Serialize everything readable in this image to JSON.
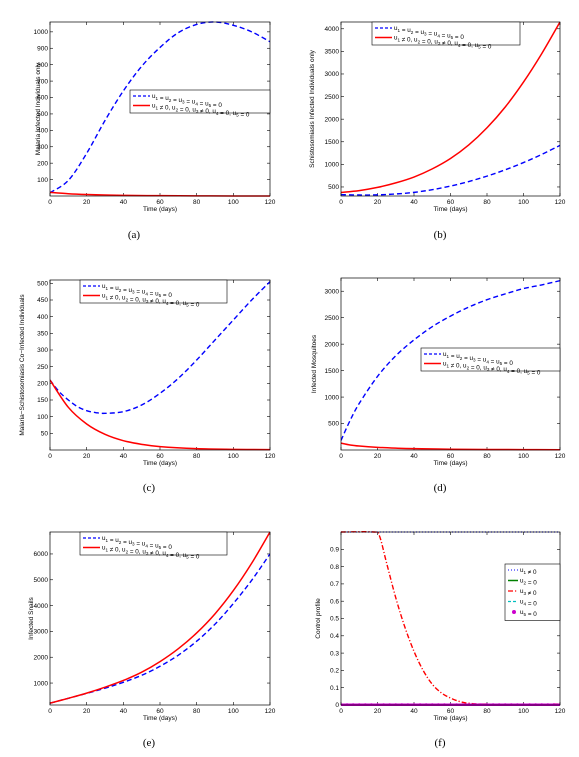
{
  "chart_data": [
    {
      "id": "a",
      "type": "line",
      "caption": "(a)",
      "xlabel": "Time (days)",
      "ylabel": "Malaria Infected Individuals only",
      "xlim": [
        0,
        120
      ],
      "ylim": [
        0,
        1060
      ],
      "xticks": [
        0,
        20,
        40,
        60,
        80,
        100,
        120
      ],
      "yticks": [
        100,
        200,
        300,
        400,
        500,
        600,
        700,
        800,
        900,
        1000
      ],
      "legend_position": "middle-right",
      "series": [
        {
          "name": "u1 = u2 = u3 = u4 = u5 = 0",
          "style": "dashed",
          "color": "#0000ff",
          "x": [
            0,
            10,
            20,
            30,
            40,
            50,
            60,
            70,
            80,
            90,
            100,
            110,
            120
          ],
          "y": [
            20,
            95,
            260,
            460,
            640,
            790,
            905,
            995,
            1045,
            1060,
            1040,
            1000,
            940
          ]
        },
        {
          "name": "u1 ≠ 0, u2 = 0, u3 ≠ 0, u4 = 0, u5 = 0",
          "style": "solid",
          "color": "#ff0000",
          "x": [
            0,
            10,
            20,
            30,
            40,
            60,
            80,
            100,
            120
          ],
          "y": [
            22,
            14,
            9,
            6,
            4,
            2,
            1,
            0,
            0
          ]
        }
      ]
    },
    {
      "id": "b",
      "type": "line",
      "caption": "(b)",
      "xlabel": "Time (days)",
      "ylabel": "Schistosomiasis Infected Individuals only",
      "xlim": [
        0,
        120
      ],
      "ylim": [
        300,
        4150
      ],
      "xticks": [
        0,
        20,
        40,
        60,
        80,
        100,
        120
      ],
      "yticks": [
        500,
        1000,
        1500,
        2000,
        2500,
        3000,
        3500,
        4000
      ],
      "legend_position": "top-right",
      "series": [
        {
          "name": "u1 = u2 = u3 = u4 = u5 = 0",
          "style": "dashed",
          "color": "#0000ff",
          "x": [
            0,
            10,
            20,
            30,
            40,
            50,
            60,
            70,
            80,
            90,
            100,
            110,
            120
          ],
          "y": [
            330,
            322,
            325,
            345,
            380,
            440,
            520,
            620,
            740,
            880,
            1040,
            1220,
            1420
          ]
        },
        {
          "name": "u1 ≠ 0, u2 = 0, u3 ≠ 0, u4 = 0, u5 = 0",
          "style": "solid",
          "color": "#ff0000",
          "x": [
            0,
            10,
            20,
            30,
            40,
            50,
            60,
            70,
            80,
            90,
            100,
            110,
            120
          ],
          "y": [
            380,
            420,
            490,
            590,
            720,
            900,
            1130,
            1430,
            1810,
            2270,
            2820,
            3450,
            4150
          ]
        }
      ]
    },
    {
      "id": "c",
      "type": "line",
      "caption": "(c)",
      "xlabel": "Time (days)",
      "ylabel": "Malaria−Schistosomiasis Co−Infected Individuals",
      "xlim": [
        0,
        120
      ],
      "ylim": [
        0,
        510
      ],
      "xticks": [
        0,
        20,
        40,
        60,
        80,
        100,
        120
      ],
      "yticks": [
        50,
        100,
        150,
        200,
        250,
        300,
        350,
        400,
        450,
        500
      ],
      "legend_position": "top-left",
      "series": [
        {
          "name": "u1 = u2 = u3 = u4 = u5 = 0",
          "style": "dashed",
          "color": "#0000ff",
          "x": [
            0,
            5,
            10,
            15,
            20,
            25,
            30,
            40,
            50,
            60,
            70,
            80,
            90,
            100,
            110,
            120
          ],
          "y": [
            210,
            175,
            150,
            130,
            118,
            112,
            110,
            115,
            135,
            170,
            215,
            270,
            330,
            390,
            450,
            505
          ]
        },
        {
          "name": "u1 ≠ 0, u2 = 0, u3 ≠ 0, u4 = 0, u5 = 0",
          "style": "solid",
          "color": "#ff0000",
          "x": [
            0,
            10,
            20,
            30,
            40,
            50,
            60,
            80,
            100,
            120
          ],
          "y": [
            210,
            128,
            78,
            47,
            28,
            17,
            10,
            4,
            2,
            1
          ]
        }
      ]
    },
    {
      "id": "d",
      "type": "line",
      "caption": "(d)",
      "xlabel": "Time (days)",
      "ylabel": "Infected Mosquitoes",
      "xlim": [
        0,
        120
      ],
      "ylim": [
        0,
        3250
      ],
      "xticks": [
        0,
        20,
        40,
        60,
        80,
        100,
        120
      ],
      "yticks": [
        500,
        1000,
        1500,
        2000,
        2500,
        3000
      ],
      "legend_position": "middle-right",
      "series": [
        {
          "name": "u1 = u2 = u3 = u4 = u5 = 0",
          "style": "dashed",
          "color": "#0000ff",
          "x": [
            0,
            5,
            10,
            20,
            30,
            40,
            50,
            60,
            70,
            80,
            90,
            100,
            110,
            120
          ],
          "y": [
            180,
            560,
            880,
            1390,
            1780,
            2080,
            2330,
            2530,
            2700,
            2840,
            2950,
            3050,
            3120,
            3200
          ]
        },
        {
          "name": "u1 ≠ 0, u2 = 0, u3 ≠ 0, u4 = 0, u5 = 0",
          "style": "solid",
          "color": "#ff0000",
          "x": [
            0,
            5,
            10,
            20,
            30,
            40,
            60,
            80,
            100,
            120
          ],
          "y": [
            130,
            95,
            75,
            50,
            35,
            25,
            15,
            10,
            8,
            5
          ]
        }
      ]
    },
    {
      "id": "e",
      "type": "line",
      "caption": "(e)",
      "xlabel": "Time (days)",
      "ylabel": "Infected Snails",
      "xlim": [
        0,
        120
      ],
      "ylim": [
        150,
        6850
      ],
      "xticks": [
        0,
        20,
        40,
        60,
        80,
        100,
        120
      ],
      "yticks": [
        1000,
        2000,
        3000,
        4000,
        5000,
        6000
      ],
      "legend_position": "top-right",
      "series": [
        {
          "name": "u1 = u2 = u3 = u4 = u5 = 0",
          "style": "dashed",
          "color": "#0000ff",
          "x": [
            0,
            10,
            20,
            30,
            40,
            50,
            60,
            70,
            80,
            90,
            100,
            110,
            120
          ],
          "y": [
            220,
            410,
            600,
            800,
            1030,
            1300,
            1650,
            2080,
            2620,
            3280,
            4080,
            4980,
            6000
          ]
        },
        {
          "name": "u1 ≠ 0, u2 = 0, u3 ≠ 0, u4 = 0, u5 = 0",
          "style": "solid",
          "color": "#ff0000",
          "x": [
            0,
            10,
            20,
            30,
            40,
            50,
            60,
            70,
            80,
            90,
            100,
            110,
            120
          ],
          "y": [
            220,
            410,
            610,
            840,
            1100,
            1420,
            1830,
            2330,
            2940,
            3680,
            4580,
            5640,
            6850
          ]
        }
      ]
    },
    {
      "id": "f",
      "type": "line",
      "caption": "(f)",
      "xlabel": "Time (days)",
      "ylabel": "Control profile",
      "xlim": [
        0,
        120
      ],
      "ylim": [
        0,
        1
      ],
      "xticks": [
        0,
        20,
        40,
        60,
        80,
        100,
        120
      ],
      "yticks": [
        0,
        0.1,
        0.2,
        0.3,
        0.4,
        0.5,
        0.6,
        0.7,
        0.8,
        0.9
      ],
      "legend_position": "middle-right",
      "series": [
        {
          "name": "u1 ≠ 0",
          "style": "dotted",
          "color": "#0000ff",
          "x": [
            0,
            120
          ],
          "y": [
            1,
            1
          ]
        },
        {
          "name": "u2 = 0",
          "style": "solid",
          "color": "#008000",
          "x": [
            0,
            120
          ],
          "y": [
            0,
            0
          ]
        },
        {
          "name": "u3 ≠ 0",
          "style": "dashdot",
          "color": "#ff0000",
          "x": [
            0,
            18,
            21,
            25,
            30,
            35,
            40,
            45,
            50,
            55,
            60,
            65,
            70,
            80,
            120
          ],
          "y": [
            1,
            1,
            0.98,
            0.82,
            0.62,
            0.45,
            0.31,
            0.2,
            0.12,
            0.07,
            0.04,
            0.02,
            0.01,
            0.005,
            0.005
          ]
        },
        {
          "name": "u4 = 0",
          "style": "dashed",
          "color": "#00bfbf",
          "x": [
            0,
            120
          ],
          "y": [
            0,
            0
          ]
        },
        {
          "name": "u5 = 0",
          "style": "markers",
          "color": "#cc00cc",
          "x": [
            0,
            120
          ],
          "y": [
            0,
            0
          ]
        }
      ]
    }
  ]
}
